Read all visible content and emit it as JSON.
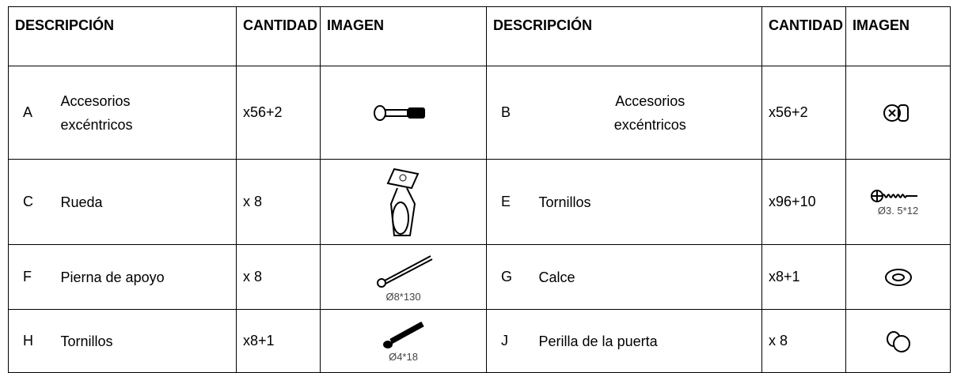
{
  "table": {
    "header": [
      "DESCRIPCIÓN",
      "CANTIDAD",
      "IMAGEN",
      "DESCRIPCIÓN",
      "CANTIDAD",
      "IMAGEN"
    ],
    "rows": [
      {
        "left": {
          "id": "A",
          "description": "Accesorios excéntricos",
          "quantity": "x56+2"
        },
        "right": {
          "id": "B",
          "description": "Accesorios excéntricos",
          "quantity": "x56+2"
        }
      },
      {
        "left": {
          "id": "C",
          "description": "Rueda",
          "quantity": "x 8"
        },
        "right": {
          "id": "E",
          "description": "Tornillos",
          "quantity": "x96+10",
          "caption": "Ø3. 5*12"
        }
      },
      {
        "left": {
          "id": "F",
          "description": "Pierna de apoyo",
          "quantity": "x 8",
          "caption": "Ø8*130"
        },
        "right": {
          "id": "G",
          "description": "Calce",
          "quantity": "x8+1"
        }
      },
      {
        "left": {
          "id": "H",
          "description": "Tornillos",
          "quantity": "x8+1",
          "caption": "Ø4*18"
        },
        "right": {
          "id": "J",
          "description": "Perilla de la puerta",
          "quantity": "x 8"
        }
      }
    ]
  }
}
